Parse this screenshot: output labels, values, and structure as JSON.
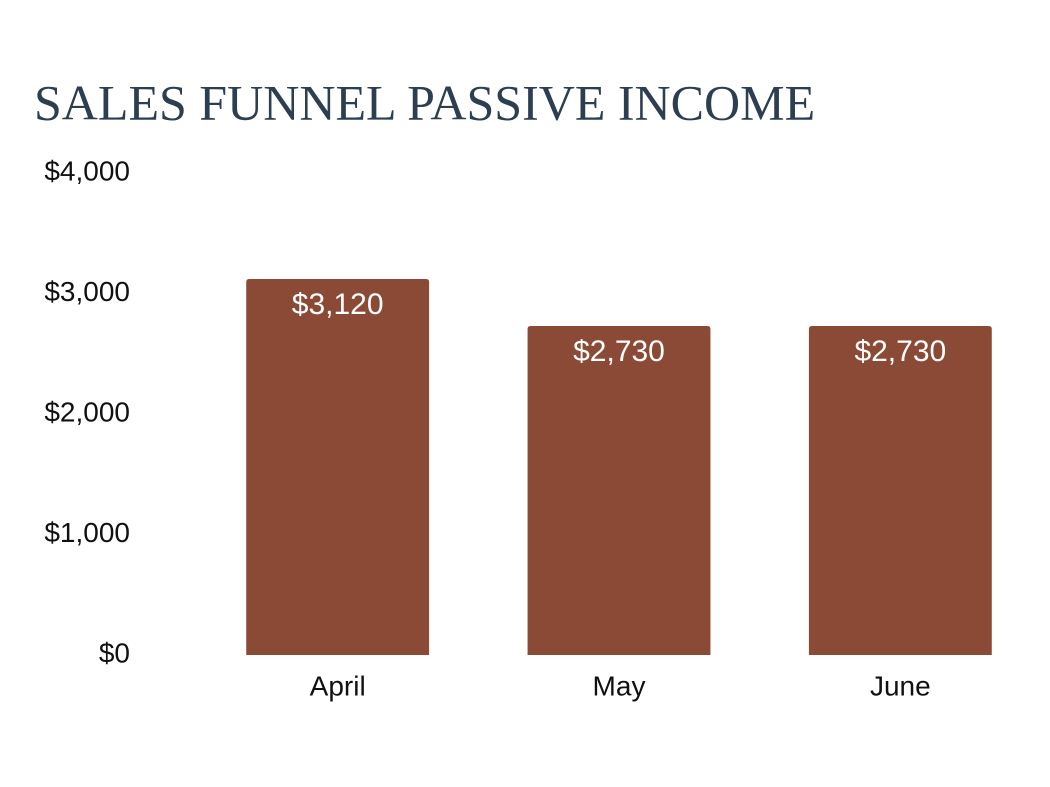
{
  "chart_data": {
    "type": "bar",
    "title": "SALES FUNNEL PASSIVE INCOME",
    "categories": [
      "April",
      "May",
      "June"
    ],
    "values": [
      3120,
      2730,
      2730
    ],
    "value_labels": [
      "$3,120",
      "$2,730",
      "$2,730"
    ],
    "color": "#8b4a36",
    "ylim": [
      0,
      4000
    ],
    "yticks": [
      {
        "value": 0,
        "label": "$0"
      },
      {
        "value": 1000,
        "label": "$1,000"
      },
      {
        "value": 2000,
        "label": "$2,000"
      },
      {
        "value": 3000,
        "label": "$3,000"
      },
      {
        "value": 4000,
        "label": "$4,000"
      }
    ],
    "grid": false
  }
}
